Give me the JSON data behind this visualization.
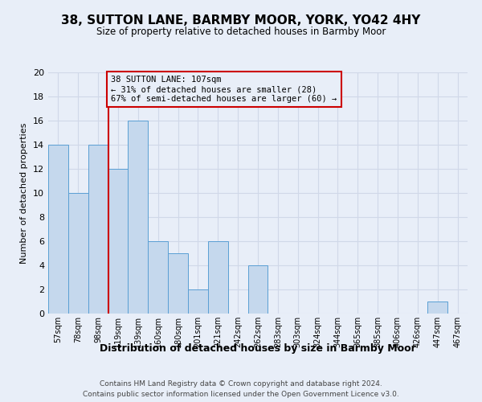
{
  "title": "38, SUTTON LANE, BARMBY MOOR, YORK, YO42 4HY",
  "subtitle": "Size of property relative to detached houses in Barmby Moor",
  "xlabel": "Distribution of detached houses by size in Barmby Moor",
  "ylabel": "Number of detached properties",
  "footer_line1": "Contains HM Land Registry data © Crown copyright and database right 2024.",
  "footer_line2": "Contains public sector information licensed under the Open Government Licence v3.0.",
  "bin_labels": [
    "57sqm",
    "78sqm",
    "98sqm",
    "119sqm",
    "139sqm",
    "160sqm",
    "180sqm",
    "201sqm",
    "221sqm",
    "242sqm",
    "262sqm",
    "283sqm",
    "303sqm",
    "324sqm",
    "344sqm",
    "365sqm",
    "385sqm",
    "406sqm",
    "426sqm",
    "447sqm",
    "467sqm"
  ],
  "bar_values": [
    14,
    10,
    14,
    12,
    16,
    6,
    5,
    2,
    6,
    0,
    4,
    0,
    0,
    0,
    0,
    0,
    0,
    0,
    0,
    1,
    0
  ],
  "bar_color": "#c5d8ed",
  "bar_edge_color": "#5a9fd4",
  "grid_color": "#d0d8e8",
  "background_color": "#e8eef8",
  "annotation_line1": "38 SUTTON LANE: 107sqm",
  "annotation_line2": "← 31% of detached houses are smaller (28)",
  "annotation_line3": "67% of semi-detached houses are larger (60) →",
  "annotation_box_edge": "#cc0000",
  "vline_color": "#cc0000",
  "vline_x": 3,
  "ylim": [
    0,
    20
  ],
  "yticks": [
    0,
    2,
    4,
    6,
    8,
    10,
    12,
    14,
    16,
    18,
    20
  ]
}
